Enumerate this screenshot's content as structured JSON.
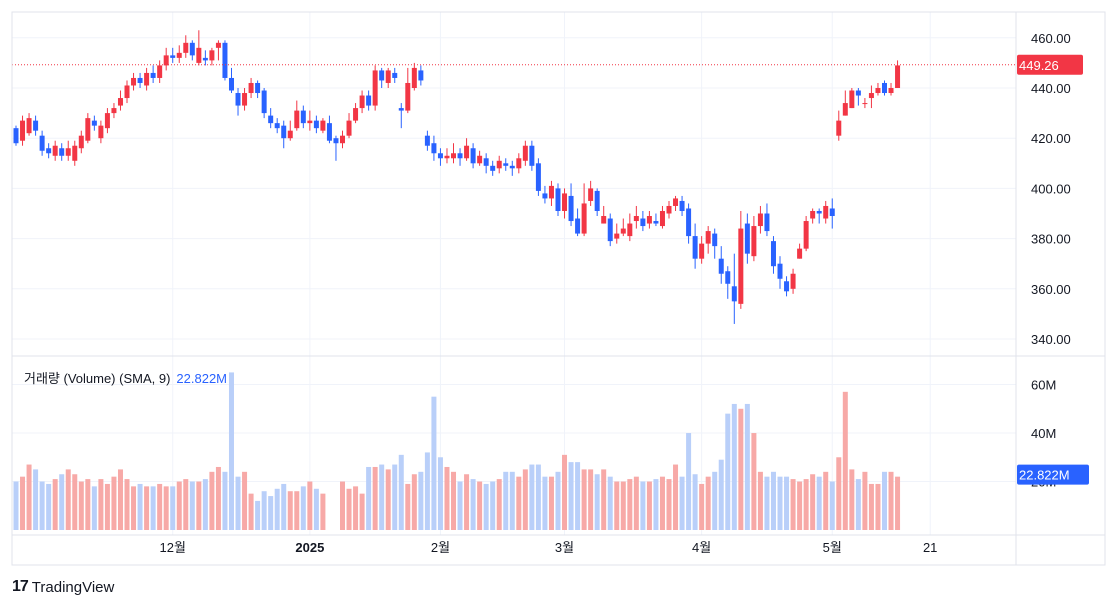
{
  "colors": {
    "up": "#f23645",
    "down": "#2962ff",
    "up_volume": "#f7a9a7",
    "down_volume": "#b9cff9",
    "grid": "#f0f3fa",
    "border": "#e0e3eb",
    "last_price_line": "#f23645",
    "volume_badge": "#2962ff"
  },
  "price_axis": {
    "ticks": [
      "460.00",
      "440.00",
      "420.00",
      "400.00",
      "380.00",
      "360.00",
      "340.00"
    ],
    "last_price_label": "449.26"
  },
  "volume_axis": {
    "ticks": [
      "60M",
      "40M",
      "20M"
    ],
    "badge_label": "22.822M"
  },
  "volume_legend": {
    "name": "거래량 (Volume) (SMA, 9)",
    "value": "22.822M"
  },
  "x_axis": {
    "labels": [
      {
        "text": "12월",
        "bold": false,
        "index": 24
      },
      {
        "text": "2025",
        "bold": true,
        "index": 45
      },
      {
        "text": "2월",
        "bold": false,
        "index": 65
      },
      {
        "text": "3월",
        "bold": false,
        "index": 84
      },
      {
        "text": "4월",
        "bold": false,
        "index": 105
      },
      {
        "text": "5월",
        "bold": false,
        "index": 125
      },
      {
        "text": "21",
        "bold": false,
        "index": 140
      }
    ]
  },
  "brand": {
    "logo": "17",
    "name": "TradingView"
  },
  "chart_data": {
    "type": "candlestick",
    "price_range": [
      335,
      466
    ],
    "volume_range": [
      0,
      66
    ],
    "volume_unit": "M",
    "last_price": 449.26,
    "volume_last": 22.822,
    "candles": [
      [
        424,
        418,
        425,
        417,
        20
      ],
      [
        419,
        427,
        429,
        417,
        22
      ],
      [
        422,
        428,
        430,
        421,
        27
      ],
      [
        427,
        423,
        429,
        421,
        25
      ],
      [
        421,
        415,
        423,
        413,
        20
      ],
      [
        416,
        414,
        418,
        412,
        19
      ],
      [
        413,
        417,
        419,
        411,
        21
      ],
      [
        416,
        413,
        418,
        411,
        23
      ],
      [
        413,
        416,
        419,
        411,
        25
      ],
      [
        411,
        417,
        419,
        409,
        23
      ],
      [
        416,
        421,
        423,
        414,
        20
      ],
      [
        419,
        428,
        430,
        418,
        21
      ],
      [
        427,
        425,
        429,
        423,
        18
      ],
      [
        420,
        425,
        427,
        418,
        21
      ],
      [
        424,
        430,
        432,
        422,
        19
      ],
      [
        430,
        432,
        434,
        428,
        22
      ],
      [
        433,
        436,
        439,
        431,
        25
      ],
      [
        436,
        441,
        443,
        434,
        21
      ],
      [
        441,
        444,
        446,
        439,
        18
      ],
      [
        444,
        442,
        446,
        440,
        19
      ],
      [
        441,
        446,
        448,
        439,
        18
      ],
      [
        446,
        444,
        449,
        442,
        18
      ],
      [
        444,
        449,
        451,
        442,
        19
      ],
      [
        449,
        453,
        456,
        447,
        18
      ],
      [
        453,
        452,
        456,
        450,
        18
      ],
      [
        452,
        454,
        457,
        450,
        20
      ],
      [
        454,
        458,
        461,
        452,
        21
      ],
      [
        458,
        453,
        459,
        451,
        20
      ],
      [
        450,
        456,
        463,
        449,
        20
      ],
      [
        452,
        451,
        455,
        449,
        21
      ],
      [
        451,
        455,
        456,
        449,
        24
      ],
      [
        456,
        458,
        459,
        451,
        26
      ],
      [
        458,
        444,
        459,
        443,
        24
      ],
      [
        444,
        439,
        448,
        438,
        65
      ],
      [
        438,
        433,
        440,
        429,
        22
      ],
      [
        433,
        438,
        440,
        431,
        24
      ],
      [
        438,
        442,
        444,
        436,
        15
      ],
      [
        442,
        438,
        443,
        436,
        12
      ],
      [
        439,
        430,
        440,
        428,
        16
      ],
      [
        429,
        426,
        432,
        424,
        14
      ],
      [
        426,
        424,
        428,
        422,
        17
      ],
      [
        425,
        420,
        427,
        416,
        19
      ],
      [
        420,
        423,
        427,
        419,
        16
      ],
      [
        424,
        431,
        435,
        423,
        16
      ],
      [
        431,
        426,
        433,
        424,
        18
      ],
      [
        426,
        427,
        431,
        423,
        20
      ],
      [
        427,
        424,
        429,
        422,
        17
      ],
      [
        423,
        427,
        428,
        422,
        15
      ],
      [
        426,
        419,
        429,
        418,
        0
      ],
      [
        420,
        418,
        421,
        411,
        0
      ],
      [
        418,
        421,
        423,
        416,
        20
      ],
      [
        421,
        427,
        430,
        420,
        17
      ],
      [
        427,
        432,
        434,
        426,
        18
      ],
      [
        432,
        437,
        439,
        430,
        15
      ],
      [
        437,
        433,
        439,
        431,
        26
      ],
      [
        433,
        447,
        449,
        431,
        26
      ],
      [
        447,
        443,
        448,
        440,
        27
      ],
      [
        442,
        447,
        448,
        440,
        25
      ],
      [
        446,
        444,
        448,
        442,
        27
      ],
      [
        432,
        431,
        434,
        424,
        31
      ],
      [
        431,
        442,
        448,
        430,
        19
      ],
      [
        440,
        448,
        450,
        439,
        23
      ],
      [
        447,
        443,
        449,
        441,
        24
      ],
      [
        421,
        417,
        423,
        415,
        32
      ],
      [
        418,
        414,
        421,
        411,
        55
      ],
      [
        414,
        412,
        416,
        409,
        30
      ],
      [
        412,
        413,
        416,
        410,
        26
      ],
      [
        412,
        414,
        418,
        410,
        24
      ],
      [
        414,
        412,
        416,
        409,
        20
      ],
      [
        412,
        417,
        420,
        411,
        23
      ],
      [
        416,
        410,
        418,
        408,
        21
      ],
      [
        410,
        413,
        415,
        409,
        20
      ],
      [
        412,
        409,
        414,
        406,
        19
      ],
      [
        409,
        407,
        411,
        405,
        20
      ],
      [
        408,
        411,
        413,
        406,
        21
      ],
      [
        410,
        409,
        412,
        407,
        24
      ],
      [
        409,
        408,
        411,
        405,
        24
      ],
      [
        408,
        412,
        414,
        406,
        22
      ],
      [
        411,
        417,
        419,
        409,
        25
      ],
      [
        417,
        409,
        419,
        407,
        27
      ],
      [
        410,
        399,
        412,
        397,
        27
      ],
      [
        398,
        396,
        401,
        394,
        22
      ],
      [
        396,
        401,
        403,
        393,
        22
      ],
      [
        400,
        391,
        402,
        389,
        24
      ],
      [
        391,
        398,
        400,
        388,
        31
      ],
      [
        397,
        387,
        402,
        385,
        28
      ],
      [
        388,
        382,
        392,
        381,
        28
      ],
      [
        382,
        394,
        402,
        381,
        25
      ],
      [
        395,
        400,
        403,
        393,
        25
      ],
      [
        399,
        391,
        400,
        389,
        23
      ],
      [
        386,
        389,
        393,
        386,
        25
      ],
      [
        388,
        379,
        390,
        377,
        22
      ],
      [
        380,
        382,
        386,
        378,
        20
      ],
      [
        382,
        384,
        388,
        381,
        20
      ],
      [
        381,
        386,
        390,
        379,
        21
      ],
      [
        387,
        389,
        393,
        384,
        22
      ],
      [
        388,
        385,
        391,
        383,
        20
      ],
      [
        386,
        389,
        391,
        384,
        20
      ],
      [
        387,
        386,
        390,
        385,
        21
      ],
      [
        385,
        391,
        393,
        384,
        22
      ],
      [
        390,
        393,
        395,
        388,
        21
      ],
      [
        393,
        396,
        397,
        391,
        27
      ],
      [
        395,
        391,
        397,
        389,
        22
      ],
      [
        392,
        381,
        394,
        378,
        40
      ],
      [
        381,
        372,
        386,
        368,
        23
      ],
      [
        372,
        378,
        381,
        370,
        19
      ],
      [
        378,
        383,
        385,
        374,
        22
      ],
      [
        382,
        377,
        384,
        372,
        24
      ],
      [
        372,
        366,
        377,
        362,
        29
      ],
      [
        367,
        362,
        369,
        356,
        48
      ],
      [
        361,
        355,
        374,
        346,
        52
      ],
      [
        354,
        384,
        391,
        352,
        50
      ],
      [
        386,
        374,
        390,
        370,
        52
      ],
      [
        373,
        385,
        389,
        371,
        40
      ],
      [
        385,
        390,
        393,
        382,
        24
      ],
      [
        390,
        383,
        394,
        381,
        22
      ],
      [
        379,
        369,
        381,
        366,
        24
      ],
      [
        370,
        364,
        373,
        360,
        22
      ],
      [
        363,
        359,
        365,
        357,
        22
      ],
      [
        360,
        366,
        368,
        358,
        21
      ],
      [
        372,
        376,
        378,
        372,
        20
      ],
      [
        376,
        387,
        389,
        375,
        21
      ],
      [
        388,
        391,
        392,
        386,
        23
      ],
      [
        391,
        390,
        392,
        386,
        22
      ],
      [
        388,
        393,
        395,
        386,
        24
      ],
      [
        392,
        389,
        396,
        384,
        20
      ],
      [
        421,
        427,
        431,
        419,
        30
      ],
      [
        429,
        434,
        439,
        429,
        57
      ],
      [
        432,
        439,
        440,
        432,
        25
      ],
      [
        439,
        437,
        440,
        433,
        21
      ],
      [
        434,
        434,
        436,
        432,
        24
      ],
      [
        436,
        438,
        441,
        432,
        19
      ],
      [
        438,
        440,
        442,
        437,
        19
      ],
      [
        442,
        438,
        443,
        437,
        24
      ],
      [
        438,
        440,
        442,
        437,
        24
      ],
      [
        440,
        449,
        451,
        441,
        22
      ]
    ]
  }
}
